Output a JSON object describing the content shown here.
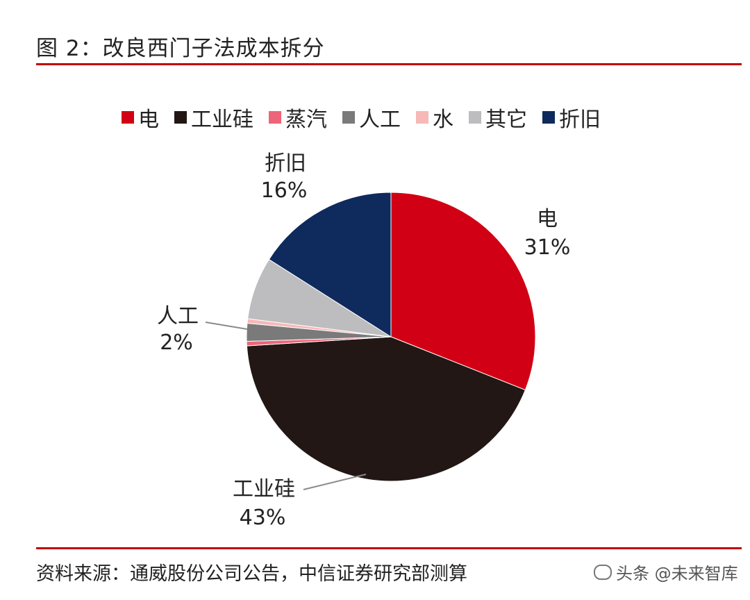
{
  "title": "图 2：改良西门子法成本拆分",
  "source": "资料来源：通威股份公司公告，中信证券研究部测算",
  "watermark": "头条 @未来智库",
  "colors": {
    "rule": "#c00000"
  },
  "chart_data": {
    "type": "pie",
    "legend_position": "top",
    "slices": [
      {
        "label": "电",
        "value": 31,
        "value_label": "31%",
        "color": "#d10014"
      },
      {
        "label": "工业硅",
        "value": 43,
        "value_label": "43%",
        "color": "#221714"
      },
      {
        "label": "蒸汽",
        "value": 0.5,
        "value_label": "",
        "color": "#ee6478"
      },
      {
        "label": "人工",
        "value": 2,
        "value_label": "2%",
        "color": "#7a7a7a"
      },
      {
        "label": "水",
        "value": 0.5,
        "value_label": "",
        "color": "#f7b8b8"
      },
      {
        "label": "其它",
        "value": 7,
        "value_label": "",
        "color": "#bdbdbf"
      },
      {
        "label": "折旧",
        "value": 16,
        "value_label": "16%",
        "color": "#0f2a5c"
      }
    ]
  }
}
